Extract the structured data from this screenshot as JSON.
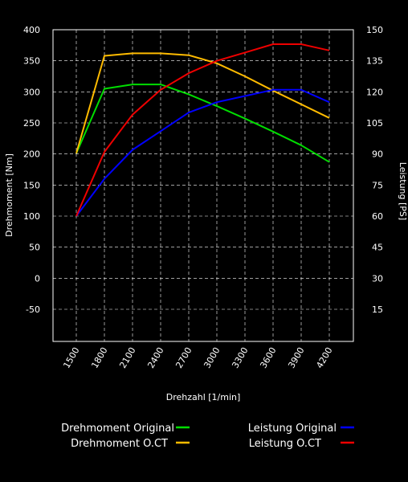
{
  "chart_data": {
    "type": "line",
    "title": "",
    "xlabel": "Drehzahl [1/min]",
    "ylabel_left": "Drehmoment [Nm]",
    "ylabel_right": "Leistung [PS]",
    "x": [
      1500,
      1800,
      2100,
      2400,
      2700,
      3000,
      3300,
      3600,
      3900,
      4200
    ],
    "x_tick_labels": [
      "1500",
      "1800",
      "2100",
      "2400",
      "2700",
      "3000",
      "3300",
      "3600",
      "3900",
      "4200"
    ],
    "ylim_left": [
      -100,
      400
    ],
    "ylim_right": [
      0,
      150
    ],
    "y_ticks_left": [
      "400",
      "350",
      "300",
      "250",
      "200",
      "150",
      "100",
      "50",
      "0",
      "-50"
    ],
    "y_ticks_right": [
      "150",
      "135",
      "120",
      "105",
      "90",
      "75",
      "60",
      "45",
      "30",
      "15"
    ],
    "grid": true,
    "legend_placement": "bottom",
    "series": [
      {
        "name": "Drehmoment Original",
        "axis": "left",
        "color": "#00dd00",
        "values": [
          201,
          305,
          312,
          312,
          296,
          277,
          257,
          236,
          214,
          187
        ]
      },
      {
        "name": "Drehmoment O.CT",
        "axis": "left",
        "color": "#ffbb00",
        "values": [
          201,
          358,
          362,
          362,
          359,
          346,
          325,
          302,
          280,
          258
        ]
      },
      {
        "name": "Leistung Original",
        "axis": "right",
        "color": "#0000ff",
        "values": [
          60,
          78,
          92,
          101,
          110,
          115,
          118,
          121,
          121,
          115
        ]
      },
      {
        "name": "Leistung O.CT",
        "axis": "right",
        "color": "#ee0000",
        "values": [
          60,
          91,
          109,
          121,
          129,
          135,
          139,
          143,
          143,
          140
        ]
      }
    ]
  }
}
